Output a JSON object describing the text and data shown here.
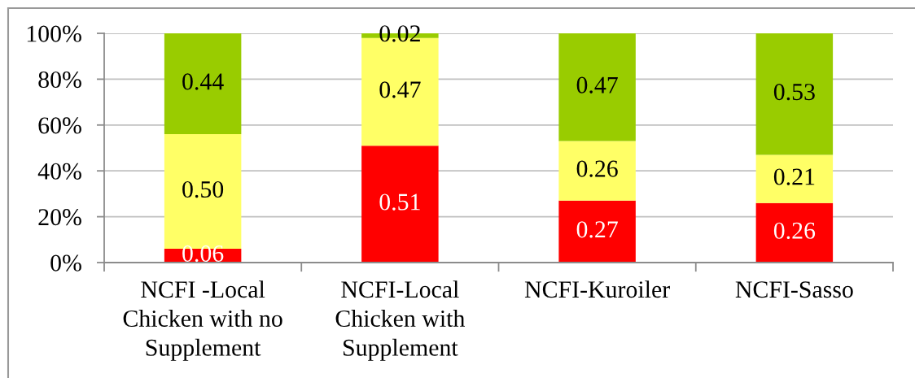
{
  "chart_data": {
    "type": "bar",
    "stacked": true,
    "categories": [
      "NCFI -Local\nChicken with no\nSupplement",
      "NCFI-Local\nChicken with\nSupplement",
      "NCFI-Kuroiler",
      "NCFI-Sasso"
    ],
    "series": [
      {
        "color": "#ff0000",
        "values": [
          0.06,
          0.51,
          0.27,
          0.26
        ],
        "value_labels": [
          "0.06",
          "0.51",
          "0.27",
          "0.26"
        ]
      },
      {
        "color": "#ffff66",
        "values": [
          0.5,
          0.47,
          0.26,
          0.21
        ],
        "value_labels": [
          "0.50",
          "0.47",
          "0.26",
          "0.21"
        ]
      },
      {
        "color": "#99cc00",
        "values": [
          0.44,
          0.02,
          0.47,
          0.53
        ],
        "value_labels": [
          "0.44",
          "0.02",
          "0.47",
          "0.53"
        ]
      }
    ],
    "ylim": [
      0,
      1
    ],
    "yticks": [
      {
        "value": 0,
        "label": "0%"
      },
      {
        "value": 0.2,
        "label": "20%"
      },
      {
        "value": 0.4,
        "label": "40%"
      },
      {
        "value": 0.6,
        "label": "60%"
      },
      {
        "value": 0.8,
        "label": "80%"
      },
      {
        "value": 1,
        "label": "100%"
      }
    ],
    "grid": "y"
  }
}
